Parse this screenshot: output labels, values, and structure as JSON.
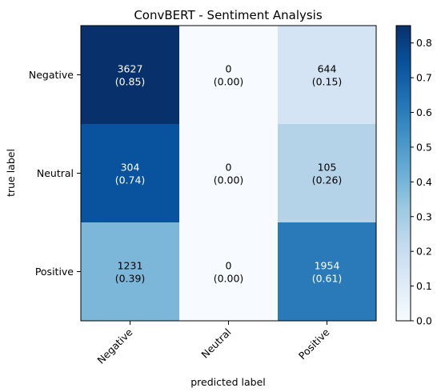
{
  "chart_data": {
    "type": "heatmap",
    "title": "ConvBERT - Sentiment Analysis",
    "xlabel": "predicted label",
    "ylabel": "true label",
    "x_categories": [
      "Negative",
      "Neutral",
      "Positive"
    ],
    "y_categories": [
      "Negative",
      "Neutral",
      "Positive"
    ],
    "counts": [
      [
        3627,
        0,
        644
      ],
      [
        304,
        0,
        105
      ],
      [
        1231,
        0,
        1954
      ]
    ],
    "fractions": [
      [
        0.85,
        0.0,
        0.15
      ],
      [
        0.74,
        0.0,
        0.26
      ],
      [
        0.39,
        0.0,
        0.61
      ]
    ],
    "cell_text": [
      [
        {
          "count": "3627",
          "frac": "(0.85)"
        },
        {
          "count": "0",
          "frac": "(0.00)"
        },
        {
          "count": "644",
          "frac": "(0.15)"
        }
      ],
      [
        {
          "count": "304",
          "frac": "(0.74)"
        },
        {
          "count": "0",
          "frac": "(0.00)"
        },
        {
          "count": "105",
          "frac": "(0.26)"
        }
      ],
      [
        {
          "count": "1231",
          "frac": "(0.39)"
        },
        {
          "count": "0",
          "frac": "(0.00)"
        },
        {
          "count": "1954",
          "frac": "(0.61)"
        }
      ]
    ],
    "colormap": "Blues",
    "colorbar": {
      "range": [
        0,
        0.85
      ],
      "ticks": [
        "0.0",
        "0.1",
        "0.2",
        "0.3",
        "0.4",
        "0.5",
        "0.6",
        "0.7",
        "0.8"
      ]
    }
  }
}
